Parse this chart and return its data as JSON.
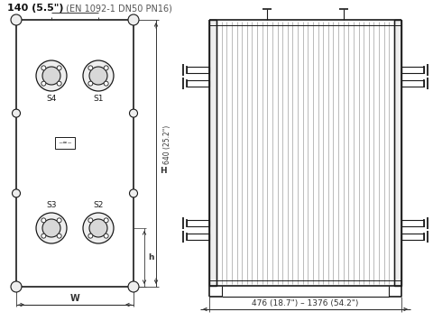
{
  "title_bold": "140 (5.5\")",
  "title_normal": " (EN 1092-1 DN50 PN16)",
  "bottom_label": "476 (18.7\") – 1376 (54.2\")",
  "H_label": "640 (25.2\")",
  "H_dim_label": "H",
  "h_label": "h",
  "W_label": "W",
  "S_labels": [
    "S4",
    "S1",
    "S3",
    "S2"
  ],
  "bg_color": "#ffffff",
  "line_color": "#1a1a1a",
  "dim_color": "#333333",
  "gray_fill": "#d8d8d8",
  "light_fill": "#eeeeee"
}
